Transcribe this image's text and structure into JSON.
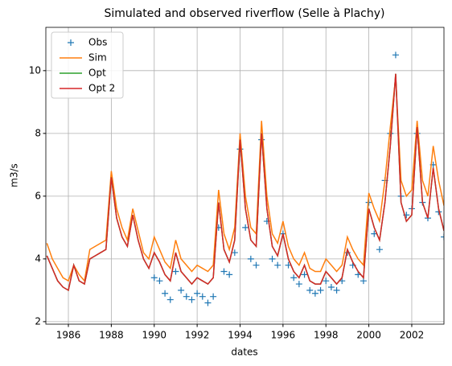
{
  "chart_data": {
    "type": "line",
    "title": "Simulated and observed riverflow (Selle à Plachy)",
    "x_label": "dates",
    "y_label": "m3/s",
    "x": [
      1985,
      1985.25,
      1985.5,
      1985.75,
      1986,
      1986.25,
      1986.5,
      1986.75,
      1987,
      1987.25,
      1987.5,
      1987.75,
      1988,
      1988.25,
      1988.5,
      1988.75,
      1989,
      1989.25,
      1989.5,
      1989.75,
      1990,
      1990.25,
      1990.5,
      1990.75,
      1991,
      1991.25,
      1991.5,
      1991.75,
      1992,
      1992.25,
      1992.5,
      1992.75,
      1993,
      1993.25,
      1993.5,
      1993.75,
      1994,
      1994.25,
      1994.5,
      1994.75,
      1995,
      1995.25,
      1995.5,
      1995.75,
      1996,
      1996.25,
      1996.5,
      1996.75,
      1997,
      1997.25,
      1997.5,
      1997.75,
      1998,
      1998.25,
      1998.5,
      1998.75,
      1999,
      1999.25,
      1999.5,
      1999.75,
      2000,
      2000.25,
      2000.5,
      2000.75,
      2001,
      2001.25,
      2001.5,
      2001.75,
      2002,
      2002.25,
      2002.5,
      2002.75,
      2003,
      2003.25,
      2003.5
    ],
    "series": [
      {
        "name": "Obs",
        "color": "#1f77b4",
        "marker": "+",
        "values": [
          null,
          null,
          null,
          null,
          null,
          null,
          null,
          null,
          null,
          null,
          null,
          null,
          null,
          null,
          null,
          null,
          null,
          null,
          null,
          null,
          3.4,
          3.3,
          2.9,
          2.7,
          3.6,
          3.0,
          2.8,
          2.7,
          2.9,
          2.8,
          2.6,
          2.8,
          5.0,
          3.6,
          3.5,
          4.2,
          7.5,
          5.0,
          4.0,
          3.8,
          7.8,
          5.2,
          4.0,
          3.8,
          4.8,
          3.8,
          3.4,
          3.2,
          3.5,
          3.0,
          2.9,
          3.0,
          3.3,
          3.1,
          3.0,
          3.3,
          4.2,
          3.8,
          3.5,
          3.3,
          5.8,
          4.8,
          4.3,
          6.5,
          8.0,
          10.5,
          6.0,
          5.4,
          5.6,
          8.0,
          5.8,
          5.3,
          7.0,
          5.5,
          4.7
        ]
      },
      {
        "name": "Sim",
        "color": "#ff7f0e",
        "values": [
          4.5,
          4.0,
          3.7,
          3.4,
          3.3,
          3.8,
          3.5,
          3.3,
          4.3,
          4.4,
          4.5,
          4.6,
          6.8,
          5.6,
          5.0,
          4.6,
          5.6,
          4.9,
          4.2,
          4.0,
          4.7,
          4.3,
          3.9,
          3.7,
          4.6,
          4.0,
          3.8,
          3.6,
          3.8,
          3.7,
          3.6,
          3.8,
          6.2,
          4.8,
          4.3,
          5.0,
          8.0,
          6.0,
          5.0,
          4.8,
          8.4,
          6.0,
          4.8,
          4.5,
          5.2,
          4.4,
          4.0,
          3.8,
          4.2,
          3.7,
          3.6,
          3.6,
          4.0,
          3.8,
          3.6,
          3.8,
          4.7,
          4.3,
          4.0,
          3.8,
          6.1,
          5.6,
          5.2,
          6.5,
          8.2,
          9.8,
          6.5,
          6.0,
          6.2,
          8.4,
          6.5,
          6.0,
          7.6,
          6.5,
          5.7
        ]
      },
      {
        "name": "Opt",
        "color": "#2ca02c",
        "values": [
          4.1,
          3.7,
          3.3,
          3.1,
          3.0,
          3.8,
          3.3,
          3.2,
          4.0,
          4.1,
          4.2,
          4.3,
          6.6,
          5.3,
          4.7,
          4.4,
          5.4,
          4.6,
          4.0,
          3.7,
          4.2,
          3.9,
          3.5,
          3.3,
          4.2,
          3.6,
          3.4,
          3.2,
          3.4,
          3.3,
          3.2,
          3.4,
          5.8,
          4.3,
          3.9,
          4.6,
          7.8,
          5.6,
          4.6,
          4.4,
          8.0,
          5.6,
          4.4,
          4.1,
          4.8,
          4.0,
          3.6,
          3.4,
          3.8,
          3.3,
          3.2,
          3.2,
          3.6,
          3.4,
          3.2,
          3.4,
          4.3,
          3.9,
          3.6,
          3.4,
          5.6,
          5.0,
          4.6,
          5.8,
          7.6,
          9.9,
          5.8,
          5.2,
          5.4,
          8.2,
          5.8,
          5.3,
          6.9,
          5.6,
          4.9
        ]
      },
      {
        "name": "Opt 2",
        "color": "#d62728",
        "values": [
          4.1,
          3.7,
          3.3,
          3.1,
          3.0,
          3.8,
          3.3,
          3.2,
          4.0,
          4.1,
          4.2,
          4.3,
          6.6,
          5.3,
          4.7,
          4.4,
          5.4,
          4.6,
          4.0,
          3.7,
          4.2,
          3.9,
          3.5,
          3.3,
          4.2,
          3.6,
          3.4,
          3.2,
          3.4,
          3.3,
          3.2,
          3.4,
          5.8,
          4.3,
          3.9,
          4.6,
          7.8,
          5.6,
          4.6,
          4.4,
          8.0,
          5.6,
          4.4,
          4.1,
          4.8,
          4.0,
          3.6,
          3.4,
          3.8,
          3.3,
          3.2,
          3.2,
          3.6,
          3.4,
          3.2,
          3.4,
          4.3,
          3.9,
          3.6,
          3.4,
          5.6,
          5.0,
          4.6,
          5.8,
          7.6,
          9.9,
          5.8,
          5.2,
          5.4,
          8.2,
          5.8,
          5.3,
          6.9,
          5.6,
          4.9
        ]
      }
    ],
    "xlim": [
      1984.95,
      2003.5
    ],
    "xticks": [
      1986,
      1988,
      1990,
      1992,
      1994,
      1996,
      1998,
      2000,
      2002
    ],
    "ylim": [
      1.92,
      11.38
    ],
    "yticks": [
      2,
      4,
      6,
      8,
      10
    ],
    "grid": true,
    "legend": "upper left"
  }
}
